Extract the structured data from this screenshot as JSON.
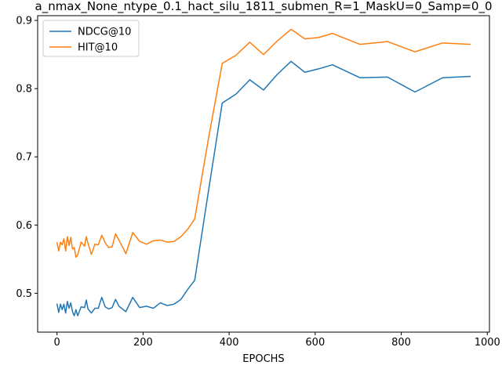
{
  "chart_data": {
    "type": "line",
    "title": "a_nmax_None_ntype_0.1_hact_silu_1811_submen_R=1_MaskU=0_Samp=0_0",
    "xlabel": "EPOCHS",
    "ylabel": "",
    "xlim": [
      -45,
      1005
    ],
    "ylim": [
      0.443,
      0.907
    ],
    "xticks": [
      0,
      200,
      400,
      600,
      800,
      1000
    ],
    "yticks": [
      0.5,
      0.6,
      0.7,
      0.8,
      0.9
    ],
    "xtick_labels": [
      "0",
      "200",
      "400",
      "600",
      "800",
      "1000"
    ],
    "ytick_labels": [
      "0.5",
      "0.6",
      "0.7",
      "0.8",
      "0.9"
    ],
    "legend": "upper left",
    "grid": false,
    "series": [
      {
        "name": "NDCG@10",
        "color": "#1f77b4",
        "x": [
          0,
          4,
          8,
          12,
          16,
          20,
          24,
          28,
          32,
          36,
          40,
          44,
          48,
          56,
          64,
          68,
          72,
          80,
          88,
          96,
          104,
          112,
          120,
          128,
          136,
          144,
          160,
          176,
          192,
          208,
          224,
          240,
          256,
          272,
          288,
          304,
          320,
          352,
          384,
          416,
          448,
          480,
          512,
          544,
          576,
          608,
          640,
          704,
          768,
          832,
          896,
          960
        ],
        "y": [
          0.484,
          0.472,
          0.484,
          0.476,
          0.484,
          0.471,
          0.488,
          0.478,
          0.486,
          0.473,
          0.467,
          0.476,
          0.467,
          0.48,
          0.479,
          0.49,
          0.477,
          0.471,
          0.478,
          0.478,
          0.494,
          0.48,
          0.477,
          0.479,
          0.491,
          0.481,
          0.473,
          0.494,
          0.479,
          0.481,
          0.478,
          0.486,
          0.482,
          0.484,
          0.491,
          0.506,
          0.519,
          0.65,
          0.779,
          0.792,
          0.813,
          0.798,
          0.821,
          0.84,
          0.824,
          0.829,
          0.835,
          0.816,
          0.817,
          0.795,
          0.816,
          0.818
        ]
      },
      {
        "name": "HIT@10",
        "color": "#ff7f0e",
        "x": [
          0,
          4,
          8,
          12,
          16,
          20,
          24,
          28,
          32,
          36,
          40,
          44,
          48,
          56,
          64,
          68,
          72,
          80,
          88,
          96,
          104,
          112,
          120,
          128,
          136,
          144,
          160,
          176,
          192,
          208,
          224,
          240,
          256,
          272,
          288,
          304,
          320,
          352,
          384,
          416,
          448,
          480,
          512,
          544,
          576,
          608,
          640,
          704,
          768,
          832,
          896,
          960
        ],
        "y": [
          0.574,
          0.562,
          0.575,
          0.571,
          0.58,
          0.562,
          0.583,
          0.57,
          0.582,
          0.565,
          0.567,
          0.553,
          0.556,
          0.575,
          0.569,
          0.583,
          0.573,
          0.557,
          0.572,
          0.571,
          0.585,
          0.574,
          0.567,
          0.568,
          0.587,
          0.578,
          0.558,
          0.589,
          0.576,
          0.572,
          0.577,
          0.578,
          0.575,
          0.576,
          0.583,
          0.594,
          0.609,
          0.727,
          0.837,
          0.849,
          0.868,
          0.85,
          0.87,
          0.887,
          0.873,
          0.875,
          0.881,
          0.865,
          0.869,
          0.854,
          0.867,
          0.865
        ]
      }
    ]
  }
}
